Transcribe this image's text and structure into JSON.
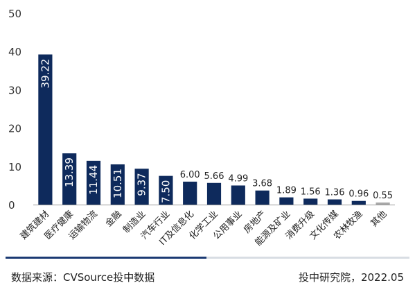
{
  "chart_data": {
    "type": "bar",
    "categories": [
      "建筑建材",
      "医疗健康",
      "运输物流",
      "金融",
      "制造业",
      "汽车行业",
      "IT及信息化",
      "化学工业",
      "公用事业",
      "房地产",
      "能源及矿业",
      "消费升级",
      "文化传媒",
      "农林牧渔",
      "其他"
    ],
    "values": [
      39.22,
      13.39,
      11.44,
      10.51,
      9.37,
      7.5,
      6.0,
      5.66,
      4.99,
      3.68,
      1.89,
      1.56,
      1.36,
      0.96,
      0.55
    ],
    "value_labels": [
      "39.22",
      "13.39",
      "11.44",
      "10.51",
      "9.37",
      "7.50",
      "6.00",
      "5.66",
      "4.99",
      "3.68",
      "1.89",
      "1.56",
      "1.36",
      "0.96",
      "0.55"
    ],
    "yticks": [
      "0",
      "10",
      "20",
      "30",
      "40",
      "50"
    ],
    "ylim": [
      0,
      50
    ],
    "title": "",
    "xlabel": "",
    "ylabel": "",
    "grid": false,
    "legend": "none",
    "colors": {
      "bar": "#0e2a5c",
      "other_bar": "#a8a8a8"
    }
  },
  "footer": {
    "source": "数据来源：CVSource投中数据",
    "credit": "投中研究院，2022.05"
  }
}
